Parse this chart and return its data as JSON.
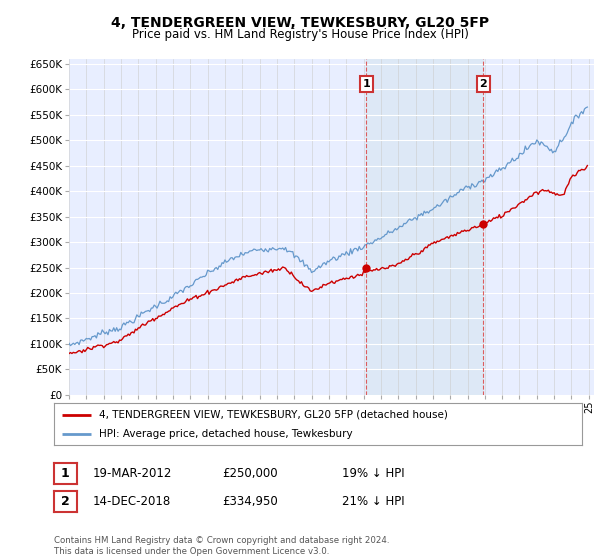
{
  "title": "4, TENDERGREEN VIEW, TEWKESBURY, GL20 5FP",
  "subtitle": "Price paid vs. HM Land Registry's House Price Index (HPI)",
  "legend_label_red": "4, TENDERGREEN VIEW, TEWKESBURY, GL20 5FP (detached house)",
  "legend_label_blue": "HPI: Average price, detached house, Tewkesbury",
  "transaction1_date": "19-MAR-2012",
  "transaction1_price": "£250,000",
  "transaction1_hpi": "19% ↓ HPI",
  "transaction2_date": "14-DEC-2018",
  "transaction2_price": "£334,950",
  "transaction2_hpi": "21% ↓ HPI",
  "footer": "Contains HM Land Registry data © Crown copyright and database right 2024.\nThis data is licensed under the Open Government Licence v3.0.",
  "ylim": [
    0,
    660000
  ],
  "ytick_vals": [
    0,
    50000,
    100000,
    150000,
    200000,
    250000,
    300000,
    350000,
    400000,
    450000,
    500000,
    550000,
    600000,
    650000
  ],
  "xlim_start": 1995,
  "xlim_end": 2025.3,
  "red_color": "#cc0000",
  "blue_color": "#6699cc",
  "shade_color": "#dce8f5",
  "plot_bg": "#e8eeff",
  "grid_color": "#ffffff",
  "vline_color": "#dd4444"
}
